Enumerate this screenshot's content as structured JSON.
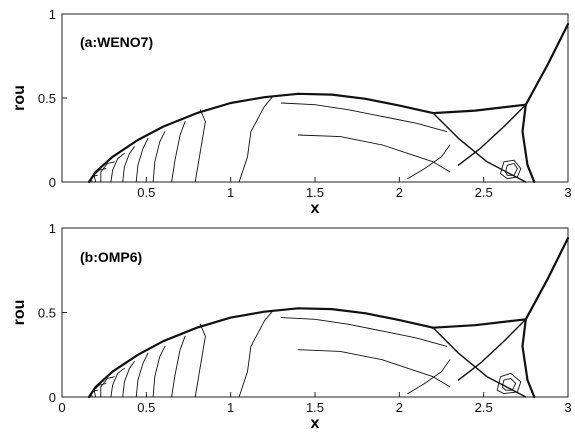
{
  "chart_data": [
    {
      "type": "line",
      "title": "(a:WENO7)",
      "xlabel": "x",
      "ylabel": "rou",
      "xlim": [
        0.05,
        3.0
      ],
      "ylim": [
        0,
        1
      ],
      "x_ticks": [
        "0.5",
        "1",
        "1.5",
        "2",
        "2.5",
        "3"
      ],
      "y_ticks": [
        "0",
        "0.5",
        "1"
      ],
      "grid": false,
      "series": [
        {
          "role": "bow-shock",
          "x": [
            0.16,
            0.2,
            0.3,
            0.45,
            0.6,
            0.8,
            1.0,
            1.2,
            1.4,
            1.6,
            1.8,
            2.0,
            2.2
          ],
          "y": [
            0.0,
            0.06,
            0.15,
            0.25,
            0.33,
            0.41,
            0.47,
            0.505,
            0.525,
            0.52,
            0.495,
            0.455,
            0.41
          ]
        },
        {
          "role": "triple-point-line",
          "x": [
            2.2,
            2.45,
            2.75
          ],
          "y": [
            0.41,
            0.425,
            0.46
          ]
        },
        {
          "role": "right-shock",
          "x": [
            2.75,
            2.88,
            3.0
          ],
          "y": [
            0.46,
            0.7,
            0.94
          ]
        },
        {
          "role": "mach-stem",
          "x": [
            2.75,
            2.73,
            2.76,
            2.8
          ],
          "y": [
            0.46,
            0.3,
            0.1,
            0.0
          ]
        },
        {
          "role": "reflected-shock",
          "x": [
            2.2,
            2.35,
            2.52,
            2.75
          ],
          "y": [
            0.41,
            0.26,
            0.12,
            0.0
          ]
        },
        {
          "role": "slip-line",
          "x": [
            2.75,
            2.62,
            2.48,
            2.35
          ],
          "y": [
            0.46,
            0.33,
            0.2,
            0.1
          ]
        },
        {
          "role": "contour",
          "x": [
            0.18,
            0.17,
            0.19,
            0.21
          ],
          "y": [
            0.0,
            0.02,
            0.035,
            0.04
          ]
        },
        {
          "role": "contour",
          "x": [
            0.2,
            0.19,
            0.22,
            0.26
          ],
          "y": [
            0.0,
            0.04,
            0.07,
            0.08
          ]
        },
        {
          "role": "contour",
          "x": [
            0.23,
            0.23,
            0.27,
            0.31
          ],
          "y": [
            0.0,
            0.06,
            0.11,
            0.12
          ]
        },
        {
          "role": "contour",
          "x": [
            0.29,
            0.3,
            0.33,
            0.37
          ],
          "y": [
            0.0,
            0.07,
            0.14,
            0.17
          ]
        },
        {
          "role": "contour",
          "x": [
            0.36,
            0.37,
            0.4,
            0.43
          ],
          "y": [
            0.0,
            0.09,
            0.17,
            0.21
          ]
        },
        {
          "role": "contour",
          "x": [
            0.44,
            0.45,
            0.48,
            0.51
          ],
          "y": [
            0.0,
            0.1,
            0.2,
            0.26
          ]
        },
        {
          "role": "contour",
          "x": [
            0.54,
            0.55,
            0.58,
            0.61
          ],
          "y": [
            0.0,
            0.12,
            0.24,
            0.3
          ]
        },
        {
          "role": "contour",
          "x": [
            0.65,
            0.67,
            0.7,
            0.73
          ],
          "y": [
            0.0,
            0.13,
            0.28,
            0.36
          ]
        },
        {
          "role": "contour",
          "x": [
            0.79,
            0.81,
            0.83,
            0.85,
            0.82
          ],
          "y": [
            0.0,
            0.12,
            0.24,
            0.36,
            0.43
          ]
        },
        {
          "role": "contour",
          "x": [
            1.05,
            1.1,
            1.12,
            1.2,
            1.25
          ],
          "y": [
            0.0,
            0.15,
            0.3,
            0.45,
            0.51
          ]
        },
        {
          "role": "contour",
          "x": [
            1.3,
            1.5,
            1.7,
            1.9,
            2.1,
            2.28
          ],
          "y": [
            0.47,
            0.46,
            0.43,
            0.39,
            0.35,
            0.3
          ]
        },
        {
          "role": "contour",
          "x": [
            1.4,
            1.65,
            1.9,
            2.05,
            2.2,
            2.3
          ],
          "y": [
            0.28,
            0.27,
            0.22,
            0.17,
            0.12,
            0.06
          ]
        },
        {
          "role": "contour",
          "x": [
            2.05,
            2.15,
            2.25,
            2.3
          ],
          "y": [
            0.02,
            0.08,
            0.15,
            0.22
          ]
        },
        {
          "role": "contour",
          "x": [
            2.6,
            2.62,
            2.68,
            2.72,
            2.7,
            2.64,
            2.6
          ],
          "y": [
            0.05,
            0.12,
            0.13,
            0.08,
            0.03,
            0.02,
            0.05
          ]
        },
        {
          "role": "contour",
          "x": [
            2.63,
            2.64,
            2.68,
            2.7,
            2.68,
            2.64,
            2.63
          ],
          "y": [
            0.06,
            0.1,
            0.11,
            0.08,
            0.04,
            0.04,
            0.06
          ]
        }
      ]
    },
    {
      "type": "line",
      "title": "(b:OMP6)",
      "xlabel": "x",
      "ylabel": "rou",
      "xlim": [
        0,
        3.0
      ],
      "ylim": [
        0,
        1
      ],
      "x_ticks": [
        "0",
        "0.5",
        "1",
        "1.5",
        "2",
        "2.5",
        "3"
      ],
      "y_ticks": [
        "0",
        "0.5",
        "1"
      ],
      "grid": false,
      "series": [
        {
          "role": "bow-shock",
          "x": [
            0.16,
            0.2,
            0.3,
            0.45,
            0.6,
            0.8,
            1.0,
            1.2,
            1.4,
            1.6,
            1.8,
            2.0,
            2.2
          ],
          "y": [
            0.0,
            0.06,
            0.15,
            0.25,
            0.33,
            0.41,
            0.47,
            0.505,
            0.525,
            0.52,
            0.495,
            0.455,
            0.41
          ]
        },
        {
          "role": "triple-point-line",
          "x": [
            2.2,
            2.45,
            2.75
          ],
          "y": [
            0.41,
            0.425,
            0.46
          ]
        },
        {
          "role": "right-shock",
          "x": [
            2.75,
            2.88,
            3.0
          ],
          "y": [
            0.46,
            0.7,
            0.94
          ]
        },
        {
          "role": "mach-stem",
          "x": [
            2.75,
            2.73,
            2.76,
            2.8
          ],
          "y": [
            0.46,
            0.3,
            0.1,
            0.0
          ]
        },
        {
          "role": "reflected-shock",
          "x": [
            2.2,
            2.35,
            2.52,
            2.75
          ],
          "y": [
            0.41,
            0.26,
            0.12,
            0.0
          ]
        },
        {
          "role": "slip-line",
          "x": [
            2.75,
            2.62,
            2.48,
            2.35
          ],
          "y": [
            0.46,
            0.33,
            0.2,
            0.1
          ]
        },
        {
          "role": "contour",
          "x": [
            0.18,
            0.17,
            0.19,
            0.21
          ],
          "y": [
            0.0,
            0.02,
            0.035,
            0.04
          ]
        },
        {
          "role": "contour",
          "x": [
            0.2,
            0.19,
            0.22,
            0.26
          ],
          "y": [
            0.0,
            0.04,
            0.07,
            0.08
          ]
        },
        {
          "role": "contour",
          "x": [
            0.23,
            0.23,
            0.27,
            0.31
          ],
          "y": [
            0.0,
            0.06,
            0.11,
            0.12
          ]
        },
        {
          "role": "contour",
          "x": [
            0.29,
            0.3,
            0.33,
            0.37
          ],
          "y": [
            0.0,
            0.07,
            0.14,
            0.17
          ]
        },
        {
          "role": "contour",
          "x": [
            0.36,
            0.37,
            0.4,
            0.43
          ],
          "y": [
            0.0,
            0.09,
            0.17,
            0.21
          ]
        },
        {
          "role": "contour",
          "x": [
            0.44,
            0.45,
            0.48,
            0.51
          ],
          "y": [
            0.0,
            0.1,
            0.2,
            0.26
          ]
        },
        {
          "role": "contour",
          "x": [
            0.54,
            0.55,
            0.58,
            0.61
          ],
          "y": [
            0.0,
            0.12,
            0.24,
            0.3
          ]
        },
        {
          "role": "contour",
          "x": [
            0.65,
            0.67,
            0.7,
            0.73
          ],
          "y": [
            0.0,
            0.13,
            0.28,
            0.36
          ]
        },
        {
          "role": "contour",
          "x": [
            0.79,
            0.81,
            0.83,
            0.85,
            0.82
          ],
          "y": [
            0.0,
            0.12,
            0.24,
            0.36,
            0.43
          ]
        },
        {
          "role": "contour",
          "x": [
            1.05,
            1.1,
            1.12,
            1.2,
            1.25
          ],
          "y": [
            0.0,
            0.15,
            0.3,
            0.45,
            0.51
          ]
        },
        {
          "role": "contour",
          "x": [
            1.3,
            1.5,
            1.7,
            1.9,
            2.1,
            2.28
          ],
          "y": [
            0.47,
            0.46,
            0.43,
            0.39,
            0.35,
            0.3
          ]
        },
        {
          "role": "contour",
          "x": [
            1.4,
            1.65,
            1.9,
            2.05,
            2.2,
            2.3
          ],
          "y": [
            0.28,
            0.27,
            0.22,
            0.17,
            0.12,
            0.06
          ]
        },
        {
          "role": "contour",
          "x": [
            2.05,
            2.15,
            2.25,
            2.3
          ],
          "y": [
            0.02,
            0.08,
            0.15,
            0.22
          ]
        },
        {
          "role": "contour",
          "x": [
            2.58,
            2.6,
            2.66,
            2.72,
            2.7,
            2.62,
            2.58
          ],
          "y": [
            0.04,
            0.12,
            0.14,
            0.09,
            0.03,
            0.02,
            0.04
          ]
        },
        {
          "role": "contour",
          "x": [
            2.61,
            2.62,
            2.66,
            2.69,
            2.67,
            2.63,
            2.61
          ],
          "y": [
            0.06,
            0.1,
            0.11,
            0.08,
            0.04,
            0.04,
            0.06
          ]
        }
      ]
    }
  ]
}
